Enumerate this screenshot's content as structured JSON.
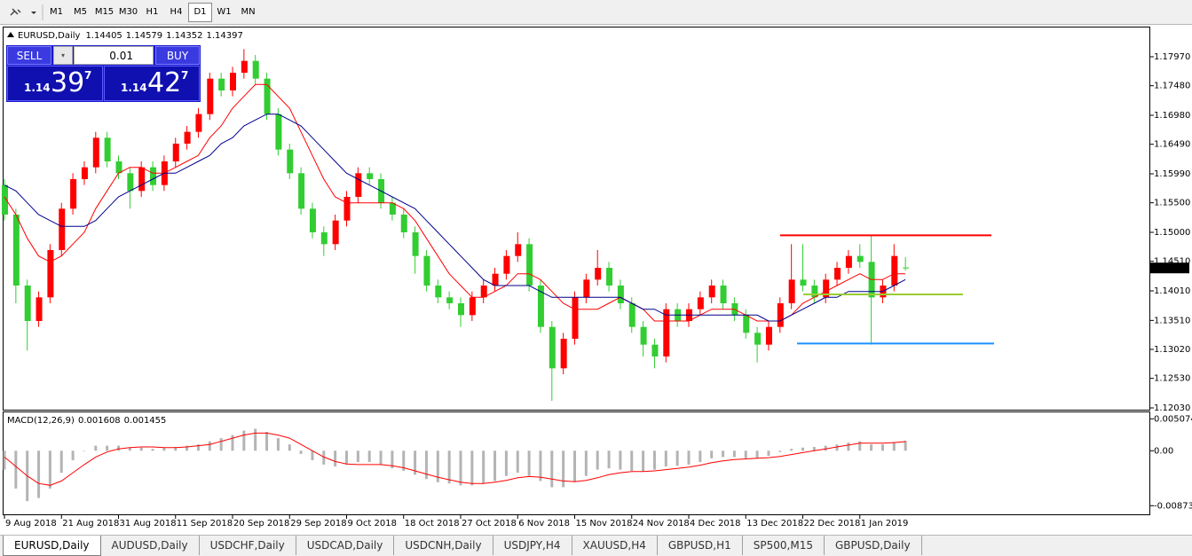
{
  "toolbar": {
    "timeframes": [
      "M1",
      "M5",
      "M15",
      "M30",
      "H1",
      "H4",
      "D1",
      "W1",
      "MN"
    ],
    "active": "D1"
  },
  "chart_data": {
    "type": "candlestick",
    "title": "EURUSD,Daily",
    "up_color": "#ff0000",
    "down_color": "#32cd32",
    "categories": [
      "9 Aug 2018",
      null,
      null,
      null,
      null,
      "21 Aug 2018",
      null,
      null,
      null,
      null,
      "31 Aug 2018",
      null,
      null,
      null,
      null,
      "11 Sep 2018",
      null,
      null,
      null,
      null,
      "20 Sep 2018",
      null,
      null,
      null,
      null,
      "29 Sep 2018",
      null,
      null,
      null,
      null,
      "9 Oct 2018",
      null,
      null,
      null,
      null,
      "18 Oct 2018",
      null,
      null,
      null,
      null,
      "27 Oct 2018",
      null,
      null,
      null,
      null,
      "6 Nov 2018",
      null,
      null,
      null,
      null,
      "15 Nov 2018",
      null,
      null,
      null,
      null,
      "24 Nov 2018",
      null,
      null,
      null,
      null,
      "4 Dec 2018",
      null,
      null,
      null,
      null,
      "13 Dec 2018",
      null,
      null,
      null,
      null,
      "22 Dec 2018",
      null,
      null,
      null,
      null,
      "1 Jan 2019",
      null,
      null,
      null,
      null
    ],
    "open": [
      1.158,
      1.153,
      1.141,
      1.135,
      1.139,
      1.147,
      1.154,
      1.159,
      1.161,
      1.166,
      1.162,
      1.16,
      1.157,
      1.161,
      1.158,
      1.162,
      1.165,
      1.167,
      1.17,
      1.176,
      1.174,
      1.177,
      1.179,
      1.176,
      1.17,
      1.164,
      1.16,
      1.154,
      1.15,
      1.148,
      1.152,
      1.156,
      1.16,
      1.159,
      1.155,
      1.153,
      1.15,
      1.146,
      1.141,
      1.139,
      1.138,
      1.136,
      1.139,
      1.141,
      1.143,
      1.146,
      1.148,
      1.141,
      1.134,
      1.127,
      1.132,
      1.139,
      1.142,
      1.144,
      1.141,
      1.138,
      1.134,
      1.131,
      1.129,
      1.137,
      1.135,
      1.137,
      1.139,
      1.141,
      1.138,
      1.136,
      1.133,
      1.131,
      1.134,
      1.138,
      1.142,
      1.141,
      1.139,
      1.142,
      1.144,
      1.146,
      1.145,
      1.139,
      1.141,
      1.14405
    ],
    "high": [
      1.159,
      1.154,
      1.142,
      1.14,
      1.148,
      1.155,
      1.16,
      1.162,
      1.167,
      1.167,
      1.163,
      1.161,
      1.162,
      1.162,
      1.163,
      1.166,
      1.168,
      1.171,
      1.177,
      1.177,
      1.178,
      1.181,
      1.18,
      1.177,
      1.171,
      1.165,
      1.161,
      1.155,
      1.151,
      1.153,
      1.157,
      1.161,
      1.161,
      1.16,
      1.156,
      1.154,
      1.151,
      1.147,
      1.142,
      1.14,
      1.139,
      1.14,
      1.142,
      1.144,
      1.147,
      1.15,
      1.149,
      1.142,
      1.135,
      1.133,
      1.14,
      1.143,
      1.147,
      1.145,
      1.142,
      1.139,
      1.135,
      1.132,
      1.138,
      1.138,
      1.138,
      1.14,
      1.142,
      1.142,
      1.139,
      1.137,
      1.134,
      1.135,
      1.139,
      1.148,
      1.148,
      1.142,
      1.143,
      1.145,
      1.147,
      1.148,
      1.1495,
      1.142,
      1.148,
      1.14579
    ],
    "low": [
      1.152,
      1.138,
      1.13,
      1.134,
      1.138,
      1.146,
      1.153,
      1.158,
      1.16,
      1.161,
      1.159,
      1.154,
      1.156,
      1.157,
      1.157,
      1.161,
      1.164,
      1.166,
      1.169,
      1.173,
      1.173,
      1.176,
      1.175,
      1.169,
      1.163,
      1.159,
      1.153,
      1.149,
      1.146,
      1.147,
      1.151,
      1.155,
      1.158,
      1.154,
      1.152,
      1.149,
      1.143,
      1.14,
      1.138,
      1.137,
      1.134,
      1.135,
      1.138,
      1.14,
      1.142,
      1.145,
      1.14,
      1.133,
      1.1215,
      1.126,
      1.131,
      1.138,
      1.141,
      1.14,
      1.137,
      1.133,
      1.129,
      1.127,
      1.128,
      1.134,
      1.134,
      1.136,
      1.138,
      1.137,
      1.135,
      1.132,
      1.128,
      1.13,
      1.133,
      1.137,
      1.14,
      1.138,
      1.138,
      1.141,
      1.143,
      1.144,
      1.131,
      1.138,
      1.14,
      1.14352
    ],
    "close": [
      1.153,
      1.141,
      1.135,
      1.139,
      1.147,
      1.154,
      1.159,
      1.161,
      1.166,
      1.162,
      1.16,
      1.157,
      1.161,
      1.158,
      1.162,
      1.165,
      1.167,
      1.17,
      1.176,
      1.174,
      1.177,
      1.179,
      1.176,
      1.17,
      1.164,
      1.16,
      1.154,
      1.15,
      1.148,
      1.152,
      1.156,
      1.16,
      1.159,
      1.155,
      1.153,
      1.15,
      1.146,
      1.141,
      1.139,
      1.138,
      1.136,
      1.139,
      1.141,
      1.143,
      1.146,
      1.148,
      1.141,
      1.134,
      1.127,
      1.132,
      1.139,
      1.142,
      1.144,
      1.141,
      1.138,
      1.134,
      1.131,
      1.129,
      1.137,
      1.135,
      1.137,
      1.139,
      1.141,
      1.138,
      1.136,
      1.133,
      1.131,
      1.134,
      1.138,
      1.142,
      1.141,
      1.139,
      1.142,
      1.144,
      1.146,
      1.145,
      1.139,
      1.141,
      1.146,
      1.14397
    ],
    "ma": [
      {
        "color": "#ff0000",
        "values": [
          1.156,
          1.153,
          1.149,
          1.146,
          1.145,
          1.146,
          1.148,
          1.15,
          1.154,
          1.157,
          1.16,
          1.161,
          1.161,
          1.16,
          1.16,
          1.161,
          1.162,
          1.163,
          1.166,
          1.168,
          1.171,
          1.173,
          1.175,
          1.175,
          1.173,
          1.171,
          1.167,
          1.163,
          1.159,
          1.156,
          1.155,
          1.155,
          1.155,
          1.155,
          1.155,
          1.154,
          1.152,
          1.149,
          1.146,
          1.143,
          1.141,
          1.139,
          1.139,
          1.14,
          1.141,
          1.143,
          1.143,
          1.142,
          1.14,
          1.138,
          1.137,
          1.137,
          1.137,
          1.138,
          1.139,
          1.138,
          1.137,
          1.135,
          1.135,
          1.135,
          1.135,
          1.136,
          1.137,
          1.137,
          1.137,
          1.136,
          1.135,
          1.135,
          1.135,
          1.136,
          1.138,
          1.139,
          1.14,
          1.141,
          1.142,
          1.143,
          1.142,
          1.142,
          1.143,
          1.143
        ]
      },
      {
        "color": "#00008b",
        "values": [
          1.158,
          1.157,
          1.155,
          1.153,
          1.152,
          1.151,
          1.151,
          1.151,
          1.152,
          1.154,
          1.156,
          1.157,
          1.158,
          1.159,
          1.16,
          1.16,
          1.161,
          1.162,
          1.163,
          1.165,
          1.166,
          1.168,
          1.169,
          1.17,
          1.17,
          1.169,
          1.168,
          1.166,
          1.164,
          1.162,
          1.16,
          1.159,
          1.158,
          1.157,
          1.156,
          1.155,
          1.154,
          1.152,
          1.15,
          1.148,
          1.146,
          1.144,
          1.142,
          1.141,
          1.141,
          1.141,
          1.141,
          1.14,
          1.139,
          1.139,
          1.139,
          1.139,
          1.139,
          1.139,
          1.139,
          1.138,
          1.137,
          1.137,
          1.136,
          1.136,
          1.136,
          1.136,
          1.136,
          1.136,
          1.136,
          1.136,
          1.136,
          1.135,
          1.135,
          1.136,
          1.137,
          1.138,
          1.139,
          1.139,
          1.14,
          1.14,
          1.14,
          1.14,
          1.141,
          1.142
        ]
      }
    ],
    "levels": [
      {
        "value": 1.1495,
        "color": "#ff0000"
      },
      {
        "value": 1.1395,
        "color": "#9acd32"
      },
      {
        "value": 1.1312,
        "color": "#1e90ff"
      }
    ],
    "ylim": [
      1.12,
      1.1848
    ],
    "yticks": [
      {
        "value": 1.1797,
        "label": "1.17970"
      },
      {
        "value": 1.1748,
        "label": "1.17480"
      },
      {
        "value": 1.1698,
        "label": "1.16980"
      },
      {
        "value": 1.1649,
        "label": "1.16490"
      },
      {
        "value": 1.1599,
        "label": "1.15990"
      },
      {
        "value": 1.155,
        "label": "1.15500"
      },
      {
        "value": 1.15,
        "label": "1.15000"
      },
      {
        "value": 1.1451,
        "label": "1.14510"
      },
      {
        "value": 1.1401,
        "label": "1.14010"
      },
      {
        "value": 1.1351,
        "label": "1.13510"
      },
      {
        "value": 1.1302,
        "label": "1.13020"
      },
      {
        "value": 1.1253,
        "label": "1.12530"
      },
      {
        "value": 1.1203,
        "label": "1.12030"
      }
    ],
    "macd": {
      "title": "MACD(12,26,9)",
      "hist_color": "#b4b4b4",
      "signal_color": "#ff0000",
      "values": [
        -0.003,
        -0.006,
        -0.008,
        -0.0075,
        -0.006,
        -0.0035,
        -0.0015,
        0.0,
        0.0008,
        0.0008,
        0.0008,
        0.0005,
        0.0005,
        0.0003,
        0.0005,
        0.0006,
        0.0008,
        0.001,
        0.0015,
        0.002,
        0.0025,
        0.0032,
        0.0035,
        0.003,
        0.002,
        0.001,
        -0.0005,
        -0.0015,
        -0.0022,
        -0.0025,
        -0.0022,
        -0.0018,
        -0.0018,
        -0.0022,
        -0.0028,
        -0.0032,
        -0.0038,
        -0.0045,
        -0.005,
        -0.0052,
        -0.0055,
        -0.0055,
        -0.0052,
        -0.0048,
        -0.004,
        -0.0035,
        -0.004,
        -0.0048,
        -0.0058,
        -0.0058,
        -0.005,
        -0.004,
        -0.003,
        -0.0028,
        -0.003,
        -0.0032,
        -0.0033,
        -0.003,
        -0.0025,
        -0.0024,
        -0.0022,
        -0.0018,
        -0.0012,
        -0.001,
        -0.001,
        -0.0012,
        -0.0012,
        -0.0008,
        -0.0002,
        0.0003,
        0.0005,
        0.0006,
        0.0008,
        0.001,
        0.0013,
        0.0015,
        0.001,
        0.001,
        0.0014,
        0.001608
      ],
      "signal": [
        -0.001,
        -0.0025,
        -0.004,
        -0.0052,
        -0.0055,
        -0.0048,
        -0.0035,
        -0.0022,
        -0.001,
        -0.0002,
        0.0003,
        0.0005,
        0.0006,
        0.0006,
        0.0005,
        0.0005,
        0.0006,
        0.0008,
        0.001,
        0.0015,
        0.002,
        0.0025,
        0.0028,
        0.0028,
        0.0025,
        0.002,
        0.001,
        0.0,
        -0.001,
        -0.0017,
        -0.0021,
        -0.0022,
        -0.0022,
        -0.0022,
        -0.0024,
        -0.0027,
        -0.0032,
        -0.0037,
        -0.0042,
        -0.0046,
        -0.005,
        -0.0052,
        -0.0052,
        -0.005,
        -0.0047,
        -0.0043,
        -0.0041,
        -0.0042,
        -0.0045,
        -0.0048,
        -0.0049,
        -0.0047,
        -0.0043,
        -0.0038,
        -0.0035,
        -0.0033,
        -0.0033,
        -0.0032,
        -0.003,
        -0.0028,
        -0.0026,
        -0.0023,
        -0.0019,
        -0.0016,
        -0.0014,
        -0.0013,
        -0.0012,
        -0.0011,
        -0.0009,
        -0.0006,
        -0.0003,
        0.0,
        0.0003,
        0.0006,
        0.0009,
        0.0012,
        0.0012,
        0.0012,
        0.0013,
        0.001455
      ],
      "ylim": [
        -0.0101,
        0.0061
      ],
      "yticks": [
        0.005074,
        {
          "value": 0,
          "label": "0.00"
        },
        -0.00873
      ]
    }
  },
  "trade_panel": {
    "sell": "SELL",
    "buy": "BUY",
    "lot": "0.01",
    "bid": {
      "big": "1.14",
      "pips": "39",
      "point": "7"
    },
    "ask": {
      "big": "1.14",
      "pips": "42",
      "point": "7"
    }
  },
  "tabs": [
    "EURUSD,Daily",
    "AUDUSD,Daily",
    "USDCHF,Daily",
    "USDCAD,Daily",
    "USDCNH,Daily",
    "USDJPY,H4",
    "XAUUSD,H4",
    "GBPUSD,H1",
    "SP500,M15",
    "GBPUSD,Daily"
  ],
  "active_tab": "EURUSD,Daily"
}
